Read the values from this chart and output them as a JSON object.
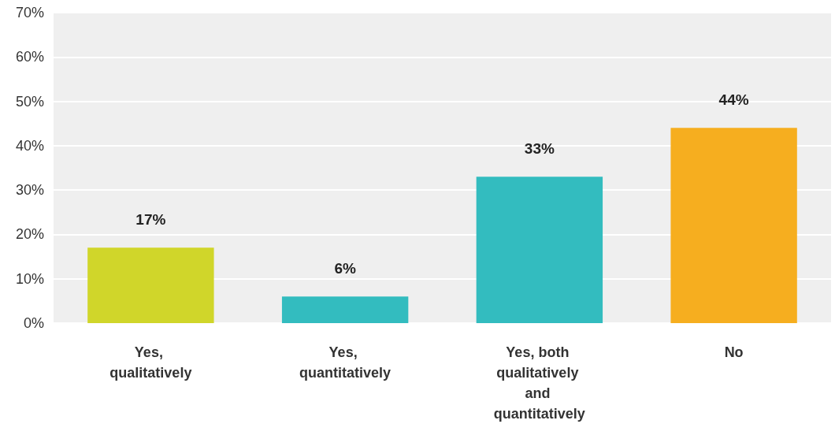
{
  "chart_data": {
    "type": "bar",
    "categories": [
      "Yes, qualitatively",
      "Yes, quantitatively",
      "Yes, both qualitatively and quantitatively",
      "No"
    ],
    "values": [
      17,
      6,
      33,
      44
    ],
    "colors": [
      "#d0d62a",
      "#33bcbf",
      "#33bcbf",
      "#f6ae1f"
    ],
    "value_labels": [
      "17%",
      "6%",
      "33%",
      "44%"
    ],
    "ylim": [
      0,
      70
    ],
    "yticks": [
      {
        "value": 0,
        "label": "0%"
      },
      {
        "value": 10,
        "label": "10%"
      },
      {
        "value": 20,
        "label": "20%"
      },
      {
        "value": 30,
        "label": "30%"
      },
      {
        "value": 40,
        "label": "40%"
      },
      {
        "value": 50,
        "label": "50%"
      },
      {
        "value": 60,
        "label": "60%"
      },
      {
        "value": 70,
        "label": "70%"
      }
    ],
    "grid": "y"
  }
}
